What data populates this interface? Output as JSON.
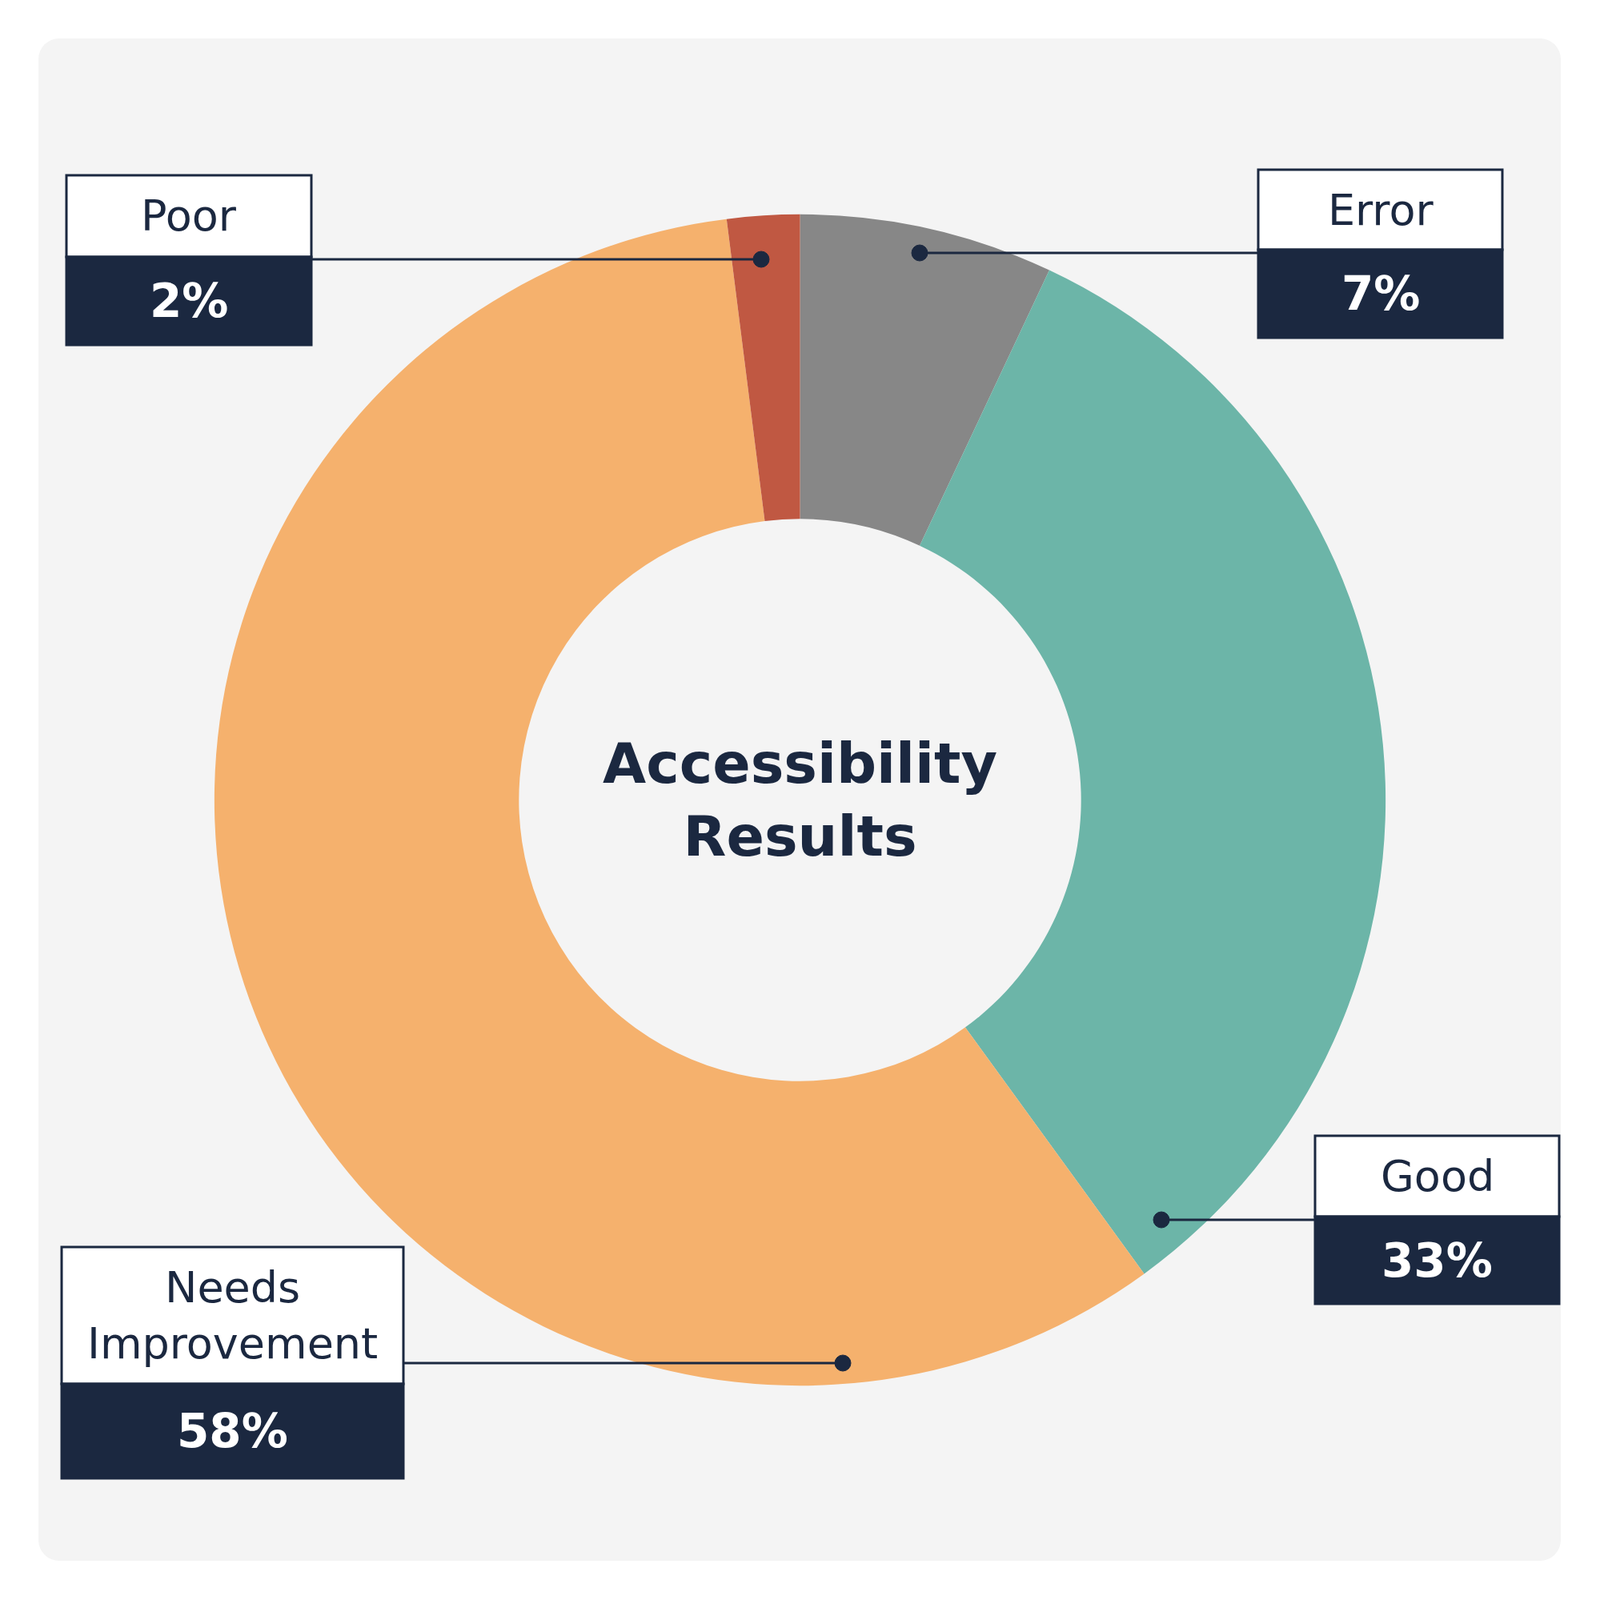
{
  "chart_data": {
    "type": "pie",
    "title": "Accessibility Results",
    "categories": [
      "Error",
      "Good",
      "Needs Improvement",
      "Poor"
    ],
    "values": [
      7,
      33,
      58,
      2
    ],
    "value_labels": [
      "7%",
      "33%",
      "58%",
      "2%"
    ],
    "colors": [
      "#878787",
      "#6cb5a8",
      "#f5b16d",
      "#c05842"
    ],
    "data_labels": true
  }
}
